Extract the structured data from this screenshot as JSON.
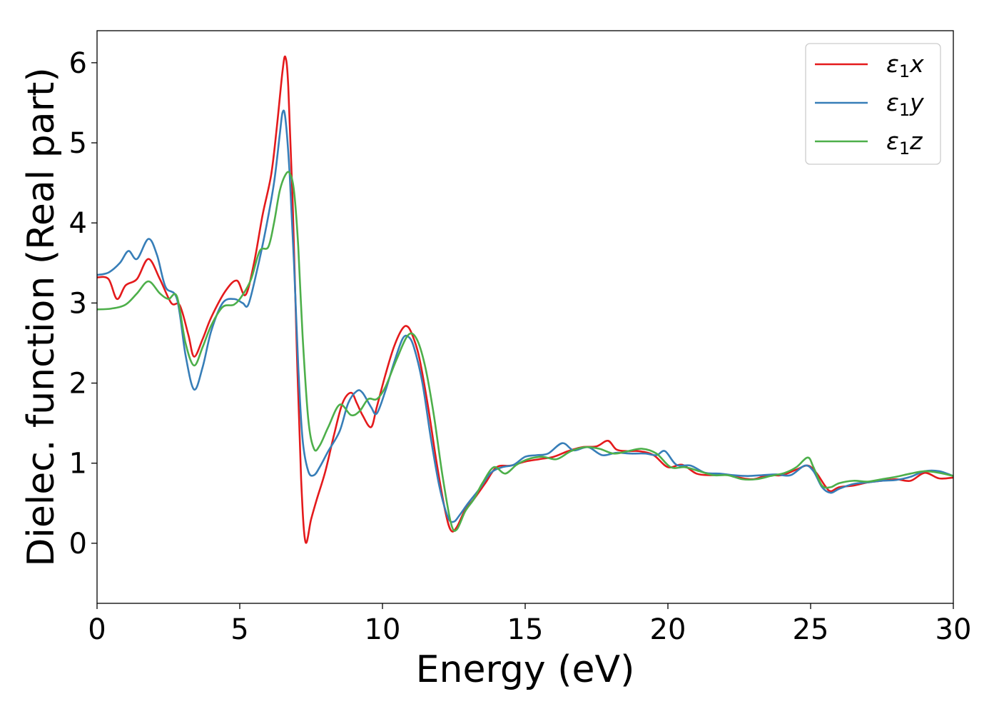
{
  "chart_data": {
    "type": "line",
    "title": "",
    "xlabel": "Energy (eV)",
    "ylabel": "Dielec. function (Real part)",
    "xlim": [
      0,
      30
    ],
    "ylim": [
      -0.75,
      6.4
    ],
    "xticks": [
      0,
      5,
      10,
      15,
      20,
      25,
      30
    ],
    "yticks": [
      0,
      1,
      2,
      3,
      4,
      5,
      6
    ],
    "grid": false,
    "legend_position": "top-right",
    "series": [
      {
        "name": "ε₁x",
        "legend_base": "ε",
        "legend_sub": "1",
        "legend_var": "x",
        "color": "#e41a1c",
        "x": [
          0,
          0.4,
          0.7,
          1.0,
          1.4,
          1.8,
          2.2,
          2.6,
          2.9,
          3.2,
          3.4,
          3.7,
          4.0,
          4.5,
          4.9,
          5.2,
          5.5,
          5.8,
          6.1,
          6.3,
          6.5,
          6.6,
          6.7,
          6.85,
          7.0,
          7.15,
          7.3,
          7.5,
          7.7,
          8.0,
          8.3,
          8.6,
          8.9,
          9.1,
          9.3,
          9.6,
          9.8,
          10.1,
          10.4,
          10.7,
          10.9,
          11.1,
          11.3,
          11.6,
          11.9,
          12.2,
          12.4,
          12.6,
          12.9,
          13.2,
          13.6,
          14.0,
          14.5,
          15.0,
          15.5,
          16.0,
          16.5,
          17.0,
          17.5,
          17.9,
          18.2,
          18.6,
          19.0,
          19.5,
          20.0,
          20.5,
          21.0,
          21.5,
          22.0,
          22.5,
          23.0,
          23.5,
          24.0,
          24.5,
          24.9,
          25.2,
          25.5,
          25.7,
          26.0,
          26.5,
          27.0,
          27.5,
          28.0,
          28.5,
          29.0,
          29.5,
          30.0
        ],
        "y": [
          3.32,
          3.3,
          3.05,
          3.22,
          3.3,
          3.55,
          3.3,
          3.0,
          2.97,
          2.6,
          2.33,
          2.55,
          2.82,
          3.15,
          3.28,
          3.1,
          3.5,
          4.1,
          4.6,
          5.2,
          5.9,
          6.07,
          5.7,
          4.3,
          2.4,
          0.8,
          0.02,
          0.3,
          0.55,
          0.9,
          1.35,
          1.75,
          1.88,
          1.75,
          1.6,
          1.45,
          1.7,
          2.1,
          2.45,
          2.68,
          2.7,
          2.55,
          2.3,
          1.7,
          1.0,
          0.4,
          0.16,
          0.2,
          0.42,
          0.55,
          0.75,
          0.95,
          0.97,
          1.02,
          1.05,
          1.08,
          1.15,
          1.2,
          1.21,
          1.28,
          1.17,
          1.15,
          1.15,
          1.1,
          0.95,
          0.98,
          0.87,
          0.85,
          0.86,
          0.82,
          0.8,
          0.85,
          0.85,
          0.92,
          0.97,
          0.88,
          0.72,
          0.65,
          0.7,
          0.72,
          0.76,
          0.78,
          0.8,
          0.78,
          0.88,
          0.81,
          0.82
        ]
      },
      {
        "name": "ε₁y",
        "legend_base": "ε",
        "legend_sub": "1",
        "legend_var": "y",
        "color": "#377eb8",
        "x": [
          0,
          0.4,
          0.8,
          1.1,
          1.4,
          1.8,
          2.1,
          2.4,
          2.8,
          3.1,
          3.4,
          3.7,
          4.0,
          4.4,
          4.8,
          5.1,
          5.3,
          5.6,
          5.9,
          6.2,
          6.4,
          6.5,
          6.6,
          6.75,
          6.9,
          7.05,
          7.2,
          7.4,
          7.6,
          7.8,
          8.1,
          8.5,
          8.8,
          9.1,
          9.3,
          9.6,
          9.8,
          10.1,
          10.4,
          10.7,
          10.9,
          11.1,
          11.4,
          11.7,
          12.0,
          12.3,
          12.5,
          12.7,
          13.0,
          13.4,
          13.8,
          14.2,
          14.6,
          15.0,
          15.4,
          15.8,
          16.3,
          16.7,
          17.2,
          17.7,
          18.2,
          18.7,
          19.2,
          19.6,
          19.9,
          20.3,
          20.8,
          21.3,
          21.8,
          22.3,
          22.8,
          23.3,
          23.8,
          24.3,
          24.8,
          25.1,
          25.4,
          25.7,
          26.0,
          26.5,
          27.0,
          27.5,
          28.0,
          28.5,
          29.0,
          29.5,
          30.0
        ],
        "y": [
          3.35,
          3.38,
          3.5,
          3.65,
          3.55,
          3.8,
          3.6,
          3.2,
          3.05,
          2.35,
          1.92,
          2.2,
          2.65,
          3.0,
          3.05,
          3.0,
          2.98,
          3.4,
          3.9,
          4.5,
          5.1,
          5.38,
          5.3,
          4.6,
          3.5,
          2.2,
          1.3,
          0.9,
          0.85,
          0.95,
          1.15,
          1.4,
          1.75,
          1.9,
          1.88,
          1.7,
          1.62,
          1.9,
          2.25,
          2.55,
          2.58,
          2.45,
          2.0,
          1.3,
          0.7,
          0.32,
          0.27,
          0.35,
          0.5,
          0.68,
          0.88,
          0.95,
          0.98,
          1.08,
          1.1,
          1.12,
          1.25,
          1.16,
          1.2,
          1.1,
          1.13,
          1.12,
          1.12,
          1.1,
          1.15,
          0.98,
          0.97,
          0.88,
          0.87,
          0.85,
          0.84,
          0.85,
          0.86,
          0.85,
          0.97,
          0.9,
          0.7,
          0.63,
          0.68,
          0.74,
          0.76,
          0.78,
          0.79,
          0.83,
          0.9,
          0.9,
          0.84
        ]
      },
      {
        "name": "ε₁z",
        "legend_base": "ε",
        "legend_sub": "1",
        "legend_var": "z",
        "color": "#4daf4a",
        "x": [
          0,
          0.5,
          1.0,
          1.4,
          1.8,
          2.2,
          2.5,
          2.8,
          3.1,
          3.4,
          3.7,
          4.0,
          4.4,
          4.8,
          5.1,
          5.4,
          5.7,
          6.0,
          6.2,
          6.4,
          6.6,
          6.75,
          6.9,
          7.05,
          7.2,
          7.4,
          7.6,
          7.8,
          8.1,
          8.5,
          8.9,
          9.2,
          9.5,
          9.8,
          10.1,
          10.5,
          10.9,
          11.2,
          11.5,
          11.8,
          12.1,
          12.4,
          12.6,
          12.9,
          13.2,
          13.5,
          13.9,
          14.3,
          14.7,
          15.1,
          15.6,
          16.1,
          16.6,
          17.1,
          17.6,
          18.1,
          18.6,
          19.1,
          19.6,
          20.1,
          20.6,
          21.1,
          21.6,
          22.1,
          22.6,
          23.1,
          23.6,
          24.1,
          24.5,
          24.9,
          25.1,
          25.4,
          25.7,
          26.0,
          26.5,
          27.0,
          27.5,
          28.0,
          28.5,
          29.0,
          29.5,
          30.0
        ],
        "y": [
          2.92,
          2.93,
          2.98,
          3.12,
          3.27,
          3.12,
          3.05,
          3.08,
          2.5,
          2.22,
          2.45,
          2.72,
          2.95,
          2.98,
          3.1,
          3.3,
          3.65,
          3.7,
          4.0,
          4.4,
          4.6,
          4.62,
          4.4,
          3.7,
          2.6,
          1.55,
          1.18,
          1.22,
          1.45,
          1.73,
          1.6,
          1.65,
          1.8,
          1.8,
          1.95,
          2.3,
          2.6,
          2.55,
          2.2,
          1.6,
          0.85,
          0.25,
          0.17,
          0.4,
          0.55,
          0.75,
          0.95,
          0.87,
          0.98,
          1.05,
          1.08,
          1.05,
          1.15,
          1.2,
          1.18,
          1.12,
          1.15,
          1.18,
          1.12,
          0.95,
          0.95,
          0.9,
          0.85,
          0.85,
          0.8,
          0.8,
          0.84,
          0.88,
          0.95,
          1.07,
          0.95,
          0.72,
          0.7,
          0.75,
          0.78,
          0.77,
          0.8,
          0.83,
          0.87,
          0.9,
          0.88,
          0.84
        ]
      }
    ]
  }
}
